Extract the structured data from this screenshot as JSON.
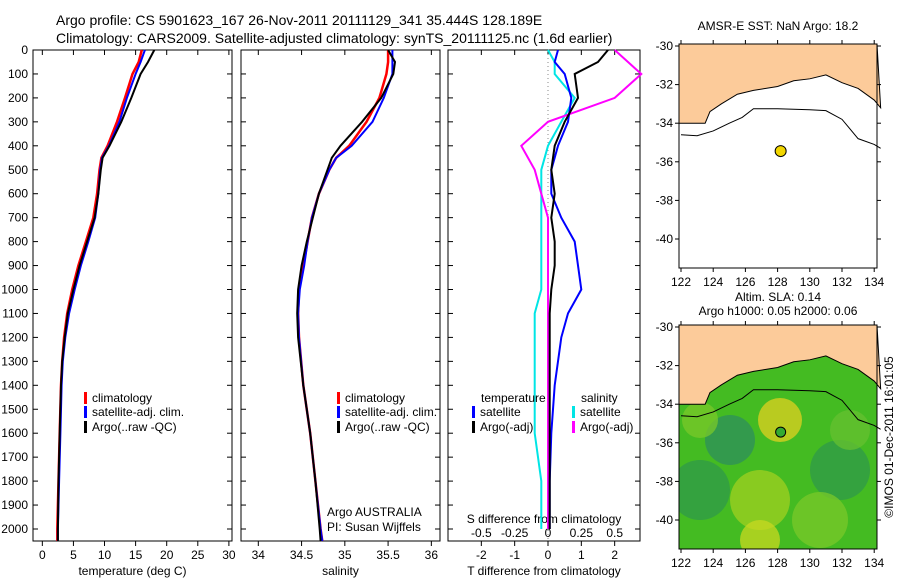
{
  "title_line1": "Argo profile: CS 5901623_167 26-Nov-2011 20111129_341 35.444S 128.189E",
  "title_line2": "Climatology: CARS2009. Satellite-adjusted climatology: synTS_20111125.nc (1.6d earlier)",
  "stamp": "©IMOS 01-Dec-2011 16:01:05",
  "colors": {
    "clim": "#ff0000",
    "sat": "#0000ff",
    "argo": "#000000",
    "ssat": "#00e5e5",
    "sargo": "#ff00ff",
    "land": "#fccb9a",
    "float": "#f2d600"
  },
  "chart_data": [
    {
      "type": "line",
      "xlabel": "temperature (deg C)",
      "ylabel": "",
      "xlim": [
        -1.5,
        30.5
      ],
      "ylim": [
        2050,
        0
      ],
      "xticks": [
        0,
        5,
        10,
        15,
        20,
        25,
        30
      ],
      "yticks": [
        0,
        100,
        200,
        300,
        400,
        500,
        600,
        700,
        800,
        900,
        1000,
        1100,
        1200,
        1300,
        1400,
        1500,
        1600,
        1700,
        1800,
        1900,
        2000
      ],
      "depth": [
        0,
        50,
        100,
        200,
        300,
        400,
        450,
        500,
        600,
        700,
        800,
        900,
        1000,
        1100,
        1200,
        1300,
        1400,
        1600,
        1800,
        2000,
        2050
      ],
      "series": [
        {
          "name": "climatology",
          "values": [
            16,
            15.5,
            14.5,
            13.3,
            12,
            10.5,
            9.5,
            9.2,
            8.8,
            8.2,
            7,
            5.8,
            4.8,
            4,
            3.5,
            3.2,
            3,
            2.8,
            2.6,
            2.4,
            2.4
          ]
        },
        {
          "name": "satellite-adj. clim.",
          "values": [
            16.5,
            15.8,
            15,
            13.6,
            12.4,
            10.7,
            9.6,
            9.3,
            9,
            8.5,
            7.4,
            6.2,
            5.2,
            4.3,
            3.7,
            3.3,
            3.1,
            2.9,
            2.7,
            2.5,
            2.5
          ]
        },
        {
          "name": "Argo(..raw -QC)",
          "values": [
            18,
            17,
            15.8,
            14.3,
            12.7,
            10.8,
            9.7,
            9.4,
            9,
            8.4,
            7.2,
            6,
            5,
            4.1,
            3.6,
            3.2,
            3,
            2.8,
            2.6,
            2.5,
            2.5
          ]
        }
      ],
      "legend": "lower-right"
    },
    {
      "type": "line",
      "xlabel": "salinity",
      "xlim": [
        33.8,
        36.1
      ],
      "xticks": [
        34,
        34.5,
        35,
        35.5,
        36
      ],
      "depth": [
        0,
        50,
        100,
        200,
        300,
        400,
        450,
        500,
        600,
        700,
        800,
        900,
        1000,
        1100,
        1200,
        1400,
        1600,
        1800,
        2000,
        2050
      ],
      "series": [
        {
          "name": "climatology",
          "values": [
            35.5,
            35.5,
            35.48,
            35.4,
            35.25,
            35.05,
            34.9,
            34.82,
            34.7,
            34.62,
            34.57,
            34.52,
            34.47,
            34.46,
            34.47,
            34.52,
            34.6,
            34.66,
            34.72,
            34.74
          ]
        },
        {
          "name": "satellite-adj. clim.",
          "values": [
            35.55,
            35.55,
            35.55,
            35.45,
            35.32,
            35.08,
            34.9,
            34.82,
            34.7,
            34.62,
            34.57,
            34.53,
            34.48,
            34.46,
            34.47,
            34.52,
            34.6,
            34.66,
            34.72,
            34.74
          ]
        },
        {
          "name": "Argo(..raw -QC)",
          "values": [
            35.5,
            35.58,
            35.56,
            35.42,
            35.2,
            34.95,
            34.85,
            34.8,
            34.7,
            34.63,
            34.56,
            34.5,
            34.46,
            34.45,
            34.46,
            34.52,
            34.6,
            34.66,
            34.71,
            34.72
          ]
        }
      ],
      "annotation": [
        "Argo AUSTRALIA",
        "PI: Susan Wijffels"
      ]
    },
    {
      "type": "line",
      "xlabel": "T difference from climatology",
      "xlabel2": "S difference from climatology",
      "xlim": [
        -3,
        2.76
      ],
      "xticks": [
        -2,
        -1,
        0,
        1,
        2
      ],
      "xticks2": [
        "-0.5",
        "-0.25",
        "0",
        "0.25",
        "0.5"
      ],
      "depth": [
        0,
        50,
        100,
        200,
        300,
        400,
        500,
        600,
        700,
        800,
        900,
        1000,
        1100,
        1200,
        1400,
        1600,
        1800,
        2000
      ],
      "series": [
        {
          "name": "temperature satellite",
          "values": [
            0.3,
            0.2,
            0.5,
            0.7,
            0.6,
            0.3,
            0.1,
            0.1,
            0.4,
            0.8,
            0.9,
            1,
            0.6,
            0.4,
            0.2,
            0.1,
            0.05,
            0.05
          ]
        },
        {
          "name": "temperature Argo(-adj)",
          "values": [
            1.8,
            1.5,
            0.8,
            0.9,
            0.5,
            0.2,
            0.1,
            0.2,
            0.1,
            0.2,
            0.2,
            0.1,
            0.05,
            0.05,
            0.05,
            0.05,
            0.05,
            0.05
          ]
        },
        {
          "name": "salinity satellite",
          "values": [
            0,
            0.05,
            0.05,
            0.2,
            0.1,
            0,
            -0.05,
            -0.05,
            -0.05,
            -0.05,
            -0.05,
            -0.05,
            -0.1,
            -0.1,
            -0.1,
            -0.1,
            -0.05,
            -0.05
          ]
        },
        {
          "name": "salinity Argo(-adj)",
          "values": [
            0.5,
            0.6,
            0.7,
            0.5,
            0,
            -0.2,
            -0.1,
            -0.05,
            0,
            0,
            0,
            0,
            0,
            0,
            0,
            0,
            0,
            0
          ]
        }
      ]
    }
  ],
  "legend": {
    "clim": "climatology",
    "sat": "satellite-adj. clim.",
    "argo": "Argo(..raw -QC)",
    "temperature": "temperature",
    "salinity": "salinity",
    "satellite": "satellite",
    "argo_adj": "Argo(-adj)"
  },
  "depth_labels": [
    "0",
    "100",
    "200",
    "300",
    "400",
    "500",
    "600",
    "700",
    "800",
    "900",
    "1000",
    "1100",
    "1200",
    "1300",
    "1400",
    "1500",
    "1600",
    "1700",
    "1800",
    "1900",
    "2000"
  ],
  "maps": {
    "sst_title": "AMSR-E SST: NaN Argo: 18.2",
    "sla_title1": "Altim. SLA: 0.14",
    "sla_title2": "Argo h1000: 0.05 h2000: 0.06",
    "lat_ticks": [
      "-30",
      "-32",
      "-34",
      "-36",
      "-38",
      "-40"
    ],
    "lon_ticks": [
      "122",
      "124",
      "126",
      "128",
      "130",
      "132",
      "134"
    ],
    "float_lon": 128.189,
    "float_lat": -35.444
  }
}
